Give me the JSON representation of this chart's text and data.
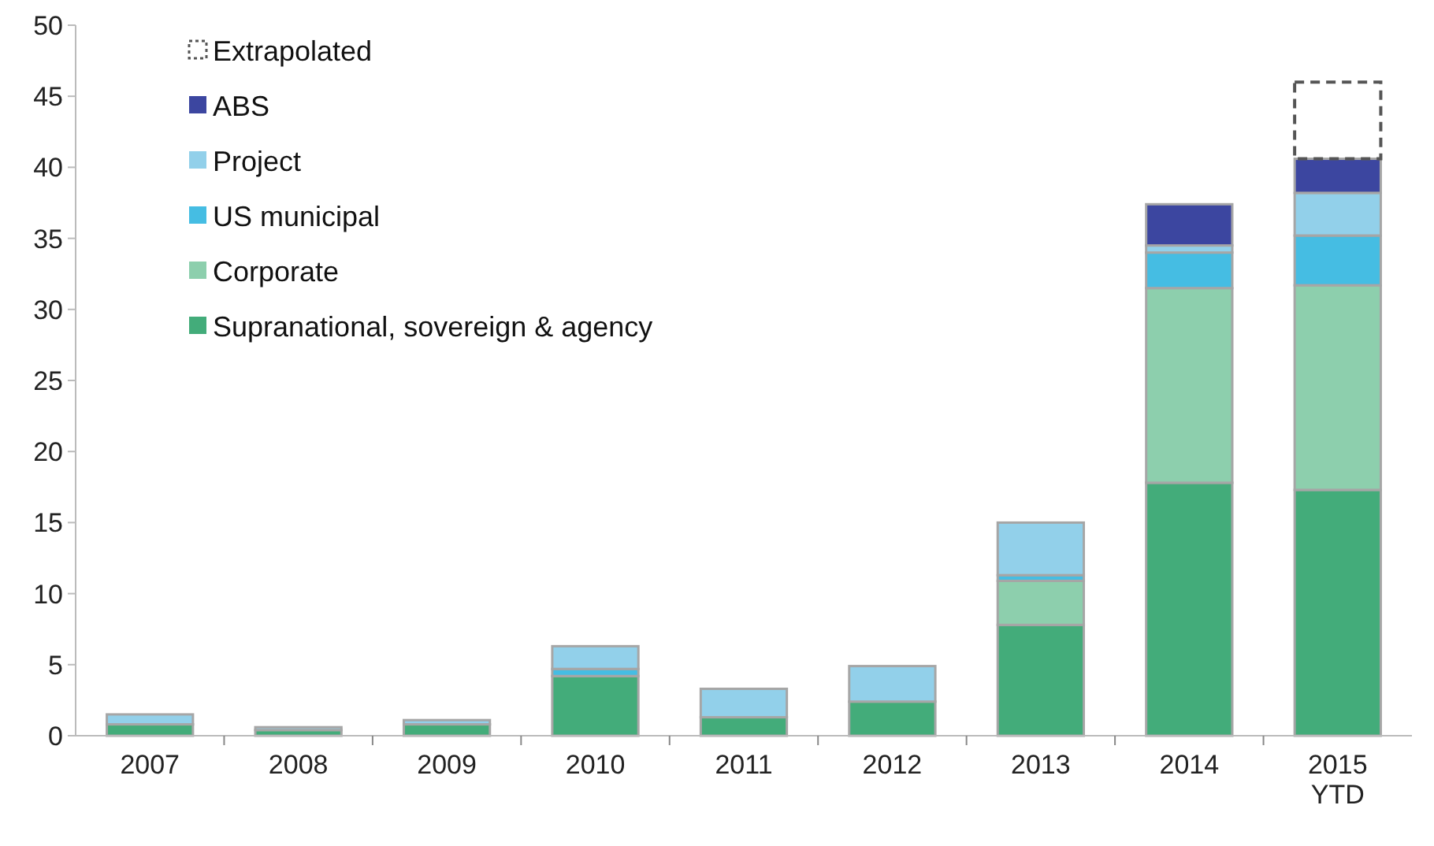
{
  "chart_data": {
    "type": "bar",
    "stacked": true,
    "categories": [
      "2007",
      "2008",
      "2009",
      "2010",
      "2011",
      "2012",
      "2013",
      "2014",
      "2015\nYTD"
    ],
    "series": [
      {
        "name": "Supranational, sovereign & agency",
        "color": "#43ac7a",
        "values": [
          0.8,
          0.4,
          0.8,
          4.2,
          1.3,
          2.4,
          7.8,
          17.8,
          17.3
        ]
      },
      {
        "name": "Corporate",
        "color": "#8dcfad",
        "values": [
          0,
          0,
          0,
          0,
          0,
          0,
          3.1,
          13.7,
          14.4
        ]
      },
      {
        "name": "US municipal",
        "color": "#45bde3",
        "values": [
          0,
          0,
          0,
          0.5,
          0,
          0,
          0.4,
          2.5,
          3.5
        ]
      },
      {
        "name": "Project",
        "color": "#92d0ea",
        "values": [
          0.7,
          0.2,
          0.3,
          1.6,
          2.0,
          2.5,
          3.7,
          0.5,
          3.0
        ]
      },
      {
        "name": "ABS",
        "color": "#3c46a0",
        "values": [
          0,
          0,
          0,
          0,
          0,
          0,
          0,
          2.9,
          2.4
        ]
      },
      {
        "name": "Extrapolated",
        "color": "#555555",
        "line_style": "dashed",
        "values": [
          null,
          null,
          null,
          null,
          null,
          null,
          null,
          null,
          5.4
        ]
      }
    ],
    "ylim": [
      0,
      50
    ],
    "yticks": [
      0,
      5,
      10,
      15,
      20,
      25,
      30,
      35,
      40,
      45,
      50
    ],
    "grid": false,
    "legend": "top left"
  }
}
